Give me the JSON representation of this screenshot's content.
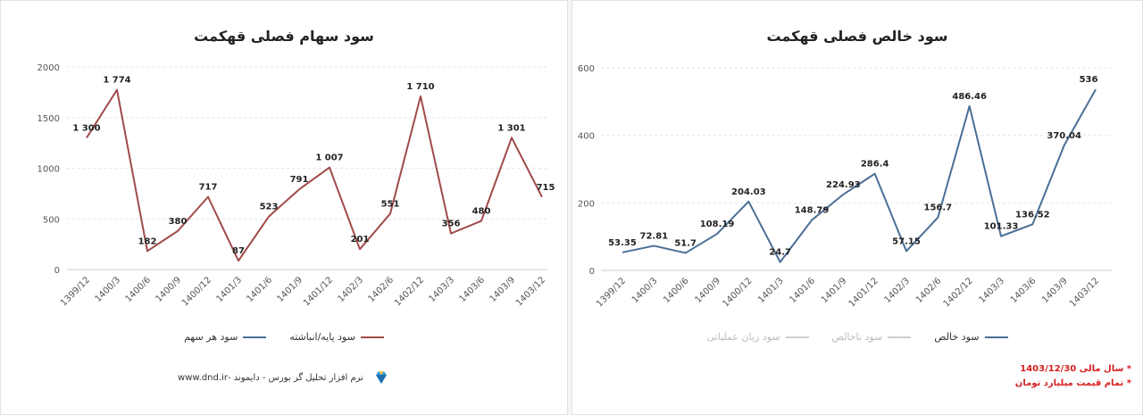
{
  "left": {
    "title": "سود سهام فصلی قهکمت",
    "legend": [
      {
        "label": "سود هر سهم",
        "color": "#4a6f96"
      },
      {
        "label": "سود پایه/انباشته",
        "color": "#a04a4a"
      }
    ],
    "footer": {
      "text": "نرم افزار تحلیل گر بورس - دایموند -www.dnd.ir"
    }
  },
  "right": {
    "title": "سود خالص فصلی قهکمت",
    "legend": [
      {
        "label": "سود خالص",
        "color": "#4a6f96"
      },
      {
        "label": "سود ناخالص",
        "color": "#cfcfcf"
      },
      {
        "label": "سود زیان عملیاتی",
        "color": "#cfcfcf"
      }
    ],
    "notes": [
      "* سال مالی 1403/12/30",
      "* تمام قیمت میلیارد تومان"
    ]
  },
  "chart_data": [
    {
      "type": "line",
      "title": "سود سهام فصلی قهکمت",
      "categories": [
        "1399/12",
        "1400/3",
        "1400/6",
        "1400/9",
        "1400/12",
        "1401/3",
        "1401/6",
        "1401/9",
        "1401/12",
        "1402/3",
        "1402/6",
        "1402/12",
        "1403/3",
        "1403/6",
        "1403/9",
        "1403/12"
      ],
      "series": [
        {
          "name": "سود پایه/انباشته",
          "color": "#a04a4a",
          "values": [
            1300,
            1774,
            182,
            380,
            717,
            87,
            523,
            791,
            1007,
            201,
            551,
            1710,
            356,
            480,
            1301,
            715
          ],
          "labels": [
            "1 300",
            "1 774",
            "182",
            "380",
            "717",
            "87",
            "523",
            "791",
            "1 007",
            "201",
            "551",
            "1 710",
            "356",
            "480",
            "1 301",
            "715"
          ]
        }
      ],
      "yticks": [
        0,
        500,
        1000,
        1500,
        2000
      ],
      "ylim": [
        0,
        2000
      ],
      "legend": "bottom"
    },
    {
      "type": "line",
      "title": "سود خالص فصلی قهکمت",
      "categories": [
        "1399/12",
        "1400/3",
        "1400/6",
        "1400/9",
        "1400/12",
        "1401/3",
        "1401/6",
        "1401/9",
        "1401/12",
        "1402/3",
        "1402/6",
        "1402/12",
        "1403/3",
        "1403/6",
        "1403/9",
        "1403/12"
      ],
      "series": [
        {
          "name": "سود خالص",
          "color": "#4a6f96",
          "values": [
            53.35,
            72.81,
            51.7,
            108.19,
            204.03,
            24.7,
            148.79,
            224.93,
            286.4,
            57.15,
            156.7,
            486.46,
            101.33,
            136.52,
            370.04,
            536
          ],
          "labels": [
            "53.35",
            "72.81",
            "51.7",
            "108.19",
            "204.03",
            "24.7",
            "148.79",
            "224.93",
            "286.4",
            "57.15",
            "156.7",
            "486.46",
            "101.33",
            "136.52",
            "370.04",
            "536"
          ]
        }
      ],
      "yticks": [
        0,
        200,
        400,
        600
      ],
      "ylim": [
        0,
        600
      ],
      "legend": "bottom"
    }
  ]
}
